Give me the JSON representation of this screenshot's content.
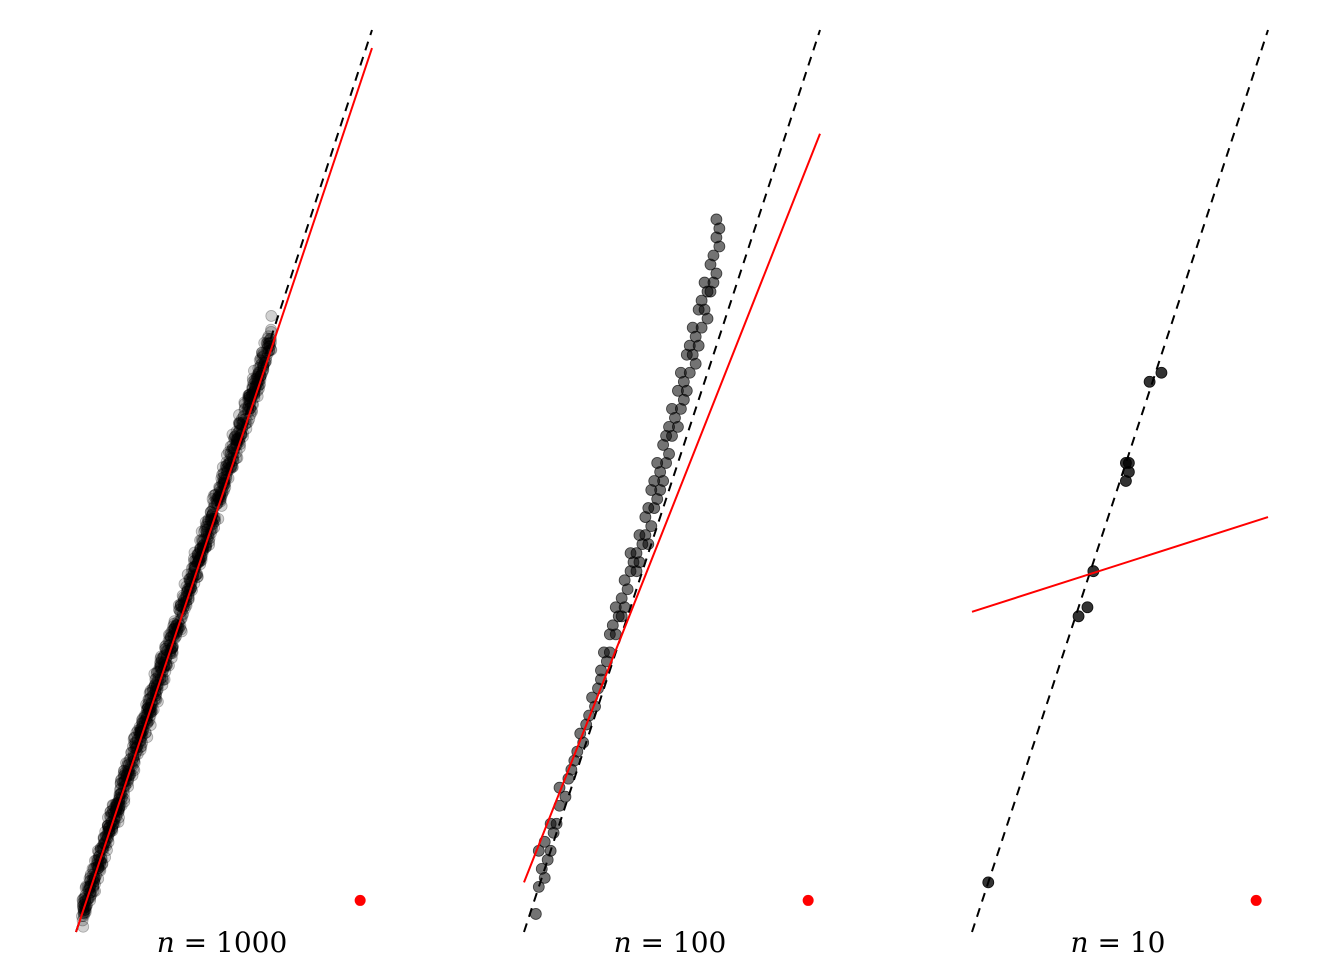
{
  "chart_data": [
    {
      "type": "scatter",
      "label_var": "n",
      "label_rest": " = 1000",
      "xlim": [
        0,
        1
      ],
      "ylim": [
        0,
        1
      ],
      "grid": false,
      "point_count": 1000,
      "point_opacity": 0.18,
      "points_x_range": [
        0.02,
        0.66
      ],
      "true_line": {
        "x": [
          0,
          1
        ],
        "y": [
          0,
          1
        ],
        "style": "dashed",
        "color": "#000000"
      },
      "fitted_line": {
        "x": [
          0,
          1
        ],
        "y": [
          0.0,
          0.98
        ],
        "style": "solid",
        "color": "#ff0000"
      },
      "marker": {
        "x": 0.96,
        "y": 0.035,
        "color": "#ff0000"
      }
    },
    {
      "type": "scatter",
      "label_var": "n",
      "label_rest": " = 100",
      "xlim": [
        0,
        1
      ],
      "ylim": [
        0,
        1
      ],
      "grid": false,
      "point_opacity": 0.55,
      "points": [
        {
          "x": 0.04,
          "y": 0.02
        },
        {
          "x": 0.05,
          "y": 0.05
        },
        {
          "x": 0.06,
          "y": 0.07
        },
        {
          "x": 0.07,
          "y": 0.06
        },
        {
          "x": 0.08,
          "y": 0.08
        },
        {
          "x": 0.09,
          "y": 0.09
        },
        {
          "x": 0.1,
          "y": 0.11
        },
        {
          "x": 0.11,
          "y": 0.12
        },
        {
          "x": 0.12,
          "y": 0.14
        },
        {
          "x": 0.14,
          "y": 0.15
        },
        {
          "x": 0.15,
          "y": 0.17
        },
        {
          "x": 0.17,
          "y": 0.19
        },
        {
          "x": 0.18,
          "y": 0.2
        },
        {
          "x": 0.2,
          "y": 0.21
        },
        {
          "x": 0.21,
          "y": 0.23
        },
        {
          "x": 0.22,
          "y": 0.24
        },
        {
          "x": 0.24,
          "y": 0.25
        },
        {
          "x": 0.25,
          "y": 0.27
        },
        {
          "x": 0.26,
          "y": 0.29
        },
        {
          "x": 0.27,
          "y": 0.31
        },
        {
          "x": 0.28,
          "y": 0.3
        },
        {
          "x": 0.29,
          "y": 0.33
        },
        {
          "x": 0.3,
          "y": 0.34
        },
        {
          "x": 0.31,
          "y": 0.36
        },
        {
          "x": 0.32,
          "y": 0.35
        },
        {
          "x": 0.33,
          "y": 0.37
        },
        {
          "x": 0.34,
          "y": 0.39
        },
        {
          "x": 0.35,
          "y": 0.38
        },
        {
          "x": 0.36,
          "y": 0.4
        },
        {
          "x": 0.37,
          "y": 0.41
        },
        {
          "x": 0.38,
          "y": 0.42
        },
        {
          "x": 0.39,
          "y": 0.44
        },
        {
          "x": 0.4,
          "y": 0.43
        },
        {
          "x": 0.41,
          "y": 0.46
        },
        {
          "x": 0.42,
          "y": 0.47
        },
        {
          "x": 0.43,
          "y": 0.49
        },
        {
          "x": 0.44,
          "y": 0.5
        },
        {
          "x": 0.45,
          "y": 0.52
        },
        {
          "x": 0.46,
          "y": 0.51
        },
        {
          "x": 0.47,
          "y": 0.54
        },
        {
          "x": 0.48,
          "y": 0.55
        },
        {
          "x": 0.49,
          "y": 0.56
        },
        {
          "x": 0.5,
          "y": 0.58
        },
        {
          "x": 0.51,
          "y": 0.57
        },
        {
          "x": 0.52,
          "y": 0.6
        },
        {
          "x": 0.53,
          "y": 0.62
        },
        {
          "x": 0.54,
          "y": 0.61
        },
        {
          "x": 0.55,
          "y": 0.64
        },
        {
          "x": 0.56,
          "y": 0.65
        },
        {
          "x": 0.57,
          "y": 0.67
        },
        {
          "x": 0.58,
          "y": 0.66
        },
        {
          "x": 0.59,
          "y": 0.69
        },
        {
          "x": 0.6,
          "y": 0.7
        },
        {
          "x": 0.61,
          "y": 0.72
        },
        {
          "x": 0.62,
          "y": 0.71
        },
        {
          "x": 0.63,
          "y": 0.74
        },
        {
          "x": 0.64,
          "y": 0.75
        },
        {
          "x": 0.65,
          "y": 0.77
        },
        {
          "x": 0.66,
          "y": 0.76
        },
        {
          "x": 0.34,
          "y": 0.36
        },
        {
          "x": 0.36,
          "y": 0.42
        },
        {
          "x": 0.38,
          "y": 0.4
        },
        {
          "x": 0.41,
          "y": 0.44
        },
        {
          "x": 0.43,
          "y": 0.45
        },
        {
          "x": 0.45,
          "y": 0.48
        },
        {
          "x": 0.47,
          "y": 0.5
        },
        {
          "x": 0.49,
          "y": 0.53
        },
        {
          "x": 0.52,
          "y": 0.56
        },
        {
          "x": 0.54,
          "y": 0.59
        },
        {
          "x": 0.56,
          "y": 0.62
        },
        {
          "x": 0.58,
          "y": 0.63
        },
        {
          "x": 0.6,
          "y": 0.67
        },
        {
          "x": 0.62,
          "y": 0.68
        },
        {
          "x": 0.64,
          "y": 0.72
        },
        {
          "x": 0.05,
          "y": 0.09
        },
        {
          "x": 0.07,
          "y": 0.1
        },
        {
          "x": 0.09,
          "y": 0.12
        },
        {
          "x": 0.12,
          "y": 0.16
        },
        {
          "x": 0.16,
          "y": 0.18
        },
        {
          "x": 0.19,
          "y": 0.22
        },
        {
          "x": 0.23,
          "y": 0.26
        },
        {
          "x": 0.26,
          "y": 0.28
        },
        {
          "x": 0.29,
          "y": 0.31
        },
        {
          "x": 0.31,
          "y": 0.33
        },
        {
          "x": 0.33,
          "y": 0.35
        },
        {
          "x": 0.39,
          "y": 0.41
        },
        {
          "x": 0.42,
          "y": 0.43
        },
        {
          "x": 0.44,
          "y": 0.47
        },
        {
          "x": 0.46,
          "y": 0.49
        },
        {
          "x": 0.48,
          "y": 0.52
        },
        {
          "x": 0.5,
          "y": 0.55
        },
        {
          "x": 0.53,
          "y": 0.58
        },
        {
          "x": 0.55,
          "y": 0.6
        },
        {
          "x": 0.57,
          "y": 0.64
        },
        {
          "x": 0.59,
          "y": 0.65
        },
        {
          "x": 0.61,
          "y": 0.69
        },
        {
          "x": 0.63,
          "y": 0.71
        },
        {
          "x": 0.65,
          "y": 0.73
        },
        {
          "x": 0.66,
          "y": 0.78
        },
        {
          "x": 0.65,
          "y": 0.79
        }
      ],
      "true_line": {
        "x": [
          0,
          1
        ],
        "y": [
          0,
          1
        ],
        "style": "dashed",
        "color": "#000000"
      },
      "fitted_line": {
        "x": [
          0,
          1
        ],
        "y": [
          0.055,
          0.885
        ],
        "style": "solid",
        "color": "#ff0000"
      },
      "marker": {
        "x": 0.96,
        "y": 0.035,
        "color": "#ff0000"
      }
    },
    {
      "type": "scatter",
      "label_var": "n",
      "label_rest": " = 10",
      "xlim": [
        0,
        1
      ],
      "ylim": [
        0,
        1
      ],
      "grid": false,
      "point_opacity": 0.8,
      "points": [
        {
          "x": 0.055,
          "y": 0.055
        },
        {
          "x": 0.36,
          "y": 0.35
        },
        {
          "x": 0.39,
          "y": 0.36
        },
        {
          "x": 0.41,
          "y": 0.4
        },
        {
          "x": 0.52,
          "y": 0.5
        },
        {
          "x": 0.53,
          "y": 0.51
        },
        {
          "x": 0.53,
          "y": 0.52
        },
        {
          "x": 0.52,
          "y": 0.52
        },
        {
          "x": 0.6,
          "y": 0.61
        },
        {
          "x": 0.64,
          "y": 0.62
        }
      ],
      "true_line": {
        "x": [
          0,
          1
        ],
        "y": [
          0,
          1
        ],
        "style": "dashed",
        "color": "#000000"
      },
      "fitted_line": {
        "x": [
          0,
          1
        ],
        "y": [
          0.355,
          0.46
        ],
        "style": "solid",
        "color": "#ff0000"
      },
      "marker": {
        "x": 0.96,
        "y": 0.035,
        "color": "#ff0000"
      }
    }
  ]
}
